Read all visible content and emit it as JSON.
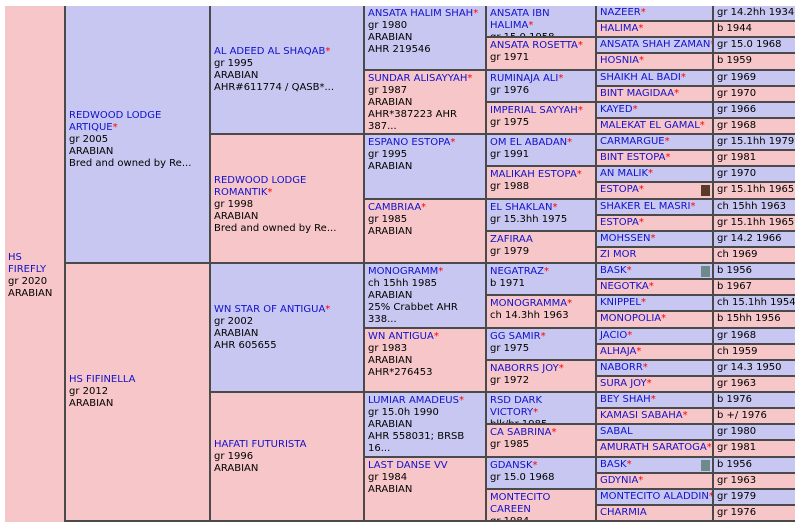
{
  "horse": {
    "name": "HS FIREFLY",
    "line2": "gr 2020",
    "line3": "ARABIAN"
  },
  "g1": [
    {
      "name": "REDWOOD LODGE ARTIQUE",
      "star": true,
      "lines": [
        "gr 2005",
        "ARABIAN",
        "Bred and owned by Re..."
      ]
    },
    {
      "name": "HS FIFINELLA",
      "star": false,
      "lines": [
        "gr 2012",
        "ARABIAN"
      ]
    }
  ],
  "g2": [
    {
      "name": "AL ADEED AL SHAQAB",
      "star": true,
      "lines": [
        "gr 1995",
        "ARABIAN",
        "AHR#611774 / QASB*..."
      ]
    },
    {
      "name": "REDWOOD LODGE ROMANTIK",
      "star": true,
      "lines": [
        "gr 1998",
        "ARABIAN",
        "Bred and owned by Re..."
      ]
    },
    {
      "name": "WN STAR OF ANTIGUA",
      "star": true,
      "lines": [
        "gr 2002",
        "ARABIAN",
        "AHR 605655"
      ]
    },
    {
      "name": "HAFATI FUTURISTA",
      "star": false,
      "lines": [
        "gr 1996",
        "ARABIAN"
      ]
    }
  ],
  "g3": [
    {
      "name": "ANSATA HALIM SHAH",
      "star": true,
      "lines": [
        "gr 1980",
        "ARABIAN",
        "AHR 219546"
      ]
    },
    {
      "name": "SUNDAR ALISAYYAH",
      "star": true,
      "lines": [
        "gr 1987",
        "ARABIAN",
        "AHR*387223 AHR 387..."
      ]
    },
    {
      "name": "ESPANO ESTOPA",
      "star": true,
      "lines": [
        "gr 1995",
        "ARABIAN"
      ]
    },
    {
      "name": "CAMBRIAA",
      "star": true,
      "lines": [
        "gr 1985",
        "ARABIAN"
      ]
    },
    {
      "name": "MONOGRAMM",
      "star": true,
      "lines": [
        "ch 15hh 1985",
        "ARABIAN",
        "25% Crabbet AHR 338..."
      ]
    },
    {
      "name": "WN ANTIGUA",
      "star": true,
      "lines": [
        "gr 1983",
        "ARABIAN",
        "AHR*276453"
      ]
    },
    {
      "name": "LUMIAR AMADEUS",
      "star": true,
      "lines": [
        "gr 15.0h 1990",
        "ARABIAN",
        "AHR 558031; BRSB 16..."
      ]
    },
    {
      "name": "LAST DANSE VV",
      "star": false,
      "lines": [
        "gr 1984",
        "ARABIAN"
      ]
    }
  ],
  "g4": [
    {
      "name": "ANSATA IBN HALIMA",
      "star": true,
      "line": "gr 15.0 1958"
    },
    {
      "name": "ANSATA ROSETTA",
      "star": true,
      "line": "gr 1971"
    },
    {
      "name": "RUMINAJA ALI",
      "star": true,
      "line": "gr 1976"
    },
    {
      "name": "IMPERIAL SAYYAH",
      "star": true,
      "line": "gr 1975"
    },
    {
      "name": "OM EL ABADAN",
      "star": true,
      "line": "gr 1991"
    },
    {
      "name": "MALIKAH ESTOPA",
      "star": true,
      "line": "gr 1988"
    },
    {
      "name": "EL SHAKLAN",
      "star": true,
      "line": "gr 15.3hh 1975"
    },
    {
      "name": "ZAFIRAA",
      "star": false,
      "line": "gr 1979"
    },
    {
      "name": "NEGATRAZ",
      "star": true,
      "line": "b 1971"
    },
    {
      "name": "MONOGRAMMA",
      "star": true,
      "line": "ch 14.3hh 1963"
    },
    {
      "name": "GG SAMIR",
      "star": true,
      "line": "gr 1975"
    },
    {
      "name": "NABORRS JOY",
      "star": true,
      "line": "gr 1972"
    },
    {
      "name": "RSD DARK VICTORY",
      "star": true,
      "line": "blk/br 1985"
    },
    {
      "name": "CA SABRINA",
      "star": true,
      "line": "gr 1985"
    },
    {
      "name": "GDANSK",
      "star": true,
      "line": "gr 15.0 1968"
    },
    {
      "name": "MONTECITO CAREEN",
      "star": false,
      "line": "gr 1984"
    }
  ],
  "g5": [
    {
      "name": "NAZEER",
      "star": true,
      "date": "gr 14.2hh 1934"
    },
    {
      "name": "HALIMA",
      "star": true,
      "date": "b 1944"
    },
    {
      "name": "ANSATA SHAH ZAMAN",
      "star": true,
      "date": "gr 15.0 1968"
    },
    {
      "name": "HOSNIA",
      "star": true,
      "date": "b 1959"
    },
    {
      "name": "SHAIKH AL BADI",
      "star": true,
      "date": "gr 1969"
    },
    {
      "name": "BINT MAGIDAA",
      "star": true,
      "date": "gr 1970"
    },
    {
      "name": "KAYED",
      "star": true,
      "date": "gr 1966"
    },
    {
      "name": "MALEKAT EL GAMAL",
      "star": true,
      "date": "gr 1968"
    },
    {
      "name": "CARMARGUE",
      "star": true,
      "date": "gr 15.1hh 1979"
    },
    {
      "name": "BINT ESTOPA",
      "star": true,
      "date": "gr 1981"
    },
    {
      "name": "AN MALIK",
      "star": true,
      "date": "gr 1970"
    },
    {
      "name": "ESTOPA",
      "star": true,
      "date": "gr 15.1hh 1965",
      "swatch": "#5a3a2a"
    },
    {
      "name": "SHAKER EL MASRI",
      "star": true,
      "date": "ch 15hh 1963"
    },
    {
      "name": "ESTOPA",
      "star": true,
      "date": "gr 15.1hh 1965"
    },
    {
      "name": "MOHSSEN",
      "star": true,
      "date": "gr 14.2 1966"
    },
    {
      "name": "ZI MOR",
      "star": false,
      "date": "ch 1969"
    },
    {
      "name": "BASK",
      "star": true,
      "date": "b 1956",
      "swatch": "#6f8a8a"
    },
    {
      "name": "NEGOTKA",
      "star": true,
      "date": "b 1967"
    },
    {
      "name": "KNIPPEL",
      "star": true,
      "date": "ch 15.1hh 1954"
    },
    {
      "name": "MONOPOLIA",
      "star": true,
      "date": "b 15hh 1956"
    },
    {
      "name": "JACIO",
      "star": true,
      "date": "gr 1968"
    },
    {
      "name": "ALHAJA",
      "star": true,
      "date": "ch 1959"
    },
    {
      "name": "NABORR",
      "star": true,
      "date": "gr 14.3 1950"
    },
    {
      "name": "SURA JOY",
      "star": true,
      "date": "gr 1963"
    },
    {
      "name": "BEY SHAH",
      "star": true,
      "date": "b 1976"
    },
    {
      "name": "KAMASI SABAHA",
      "star": true,
      "date": "b +/ 1976"
    },
    {
      "name": "SABAL",
      "star": false,
      "date": "gr 1980"
    },
    {
      "name": "AMURATH SARATOGA",
      "star": true,
      "date": "gr 1981"
    },
    {
      "name": "BASK",
      "star": true,
      "date": "b 1956",
      "swatch": "#6f8a8a"
    },
    {
      "name": "GDYNIA",
      "star": true,
      "date": "gr 1963"
    },
    {
      "name": "MONTECITO ALADDIN",
      "star": true,
      "date": "gr 1979"
    },
    {
      "name": "CHARMIA",
      "star": false,
      "date": "gr 1976"
    }
  ],
  "colors": {
    "sire_bg": "#c7c7f1",
    "dam_bg": "#f6c6c8",
    "link": "#1111cc",
    "star": "#ff0000",
    "border": "#4a4a4a"
  }
}
